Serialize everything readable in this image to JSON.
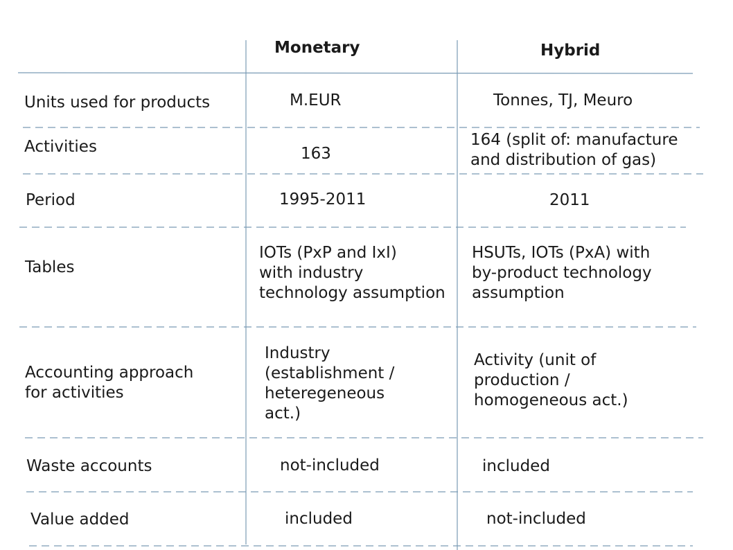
{
  "header": {
    "monetary": "Monetary",
    "hybrid": "Hybrid"
  },
  "rows": [
    {
      "label": [
        "Units used for products"
      ],
      "monetary": [
        "M.EUR"
      ],
      "hybrid": [
        "Tonnes, TJ, Meuro"
      ]
    },
    {
      "label": [
        "Activities"
      ],
      "monetary": [
        "163"
      ],
      "hybrid": [
        "164 (split of: manufacture",
        "and distribution of gas)"
      ]
    },
    {
      "label": [
        "Period"
      ],
      "monetary": [
        "1995-2011"
      ],
      "hybrid": [
        "2011"
      ]
    },
    {
      "label": [
        "Tables"
      ],
      "monetary": [
        "IOTs (PxP and IxI)",
        "with industry",
        "technology assumption"
      ],
      "hybrid": [
        "HSUTs, IOTs (PxA) with",
        "by-product technology",
        "assumption"
      ]
    },
    {
      "label": [
        "Accounting approach",
        "for activities"
      ],
      "monetary": [
        "Industry",
        "(establishment /",
        "heteregeneous",
        "act.)"
      ],
      "hybrid": [
        "Activity (unit of",
        "production /",
        "homogeneous act.)"
      ]
    },
    {
      "label": [
        "Waste accounts"
      ],
      "monetary": [
        "not-included"
      ],
      "hybrid": [
        "included"
      ]
    },
    {
      "label": [
        "Value added"
      ],
      "monetary": [
        "included"
      ],
      "hybrid": [
        "not-included"
      ]
    }
  ],
  "colors": {
    "grid": "#7a9bb5",
    "text": "#1a1a1a"
  }
}
